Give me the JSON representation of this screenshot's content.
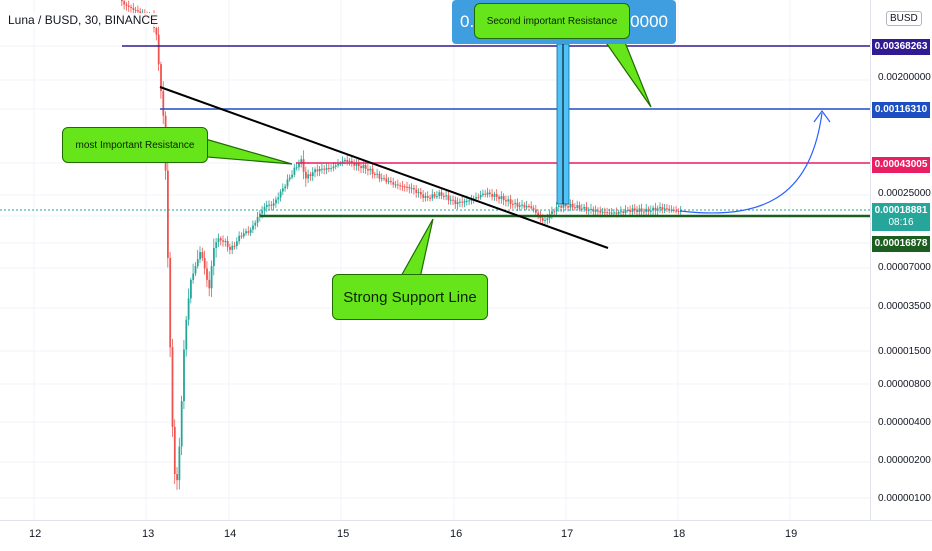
{
  "header": {
    "symbol": "Luna / BUSD, 30, BINANCE"
  },
  "top_box": {
    "left_text": "0.",
    "right_text": "30000"
  },
  "callouts": {
    "resistance_1": "most Important Resistance",
    "resistance_2": "Second important Resistance",
    "support": "Strong Support Line"
  },
  "price_axis": {
    "currency": "BUSD",
    "ticks": [
      "0.00200000",
      "0.00025000",
      "0.00007000",
      "0.00003500",
      "0.00001500",
      "0.00000800",
      "0.00000400",
      "0.00000200",
      "0.00000100"
    ],
    "tags": [
      {
        "label": "0.00368263",
        "color": "#311b92"
      },
      {
        "label": "0.00116310",
        "color": "#1e4fc2"
      },
      {
        "label": "0.00043005",
        "color": "#e91e63"
      },
      {
        "label": "0.00018881",
        "sub": "08:16",
        "color": "#26a69a"
      },
      {
        "label": "0.00016878",
        "color": "#1b5e20"
      }
    ]
  },
  "time_axis": {
    "labels": [
      "12",
      "13",
      "14",
      "15",
      "16",
      "17",
      "18",
      "19"
    ]
  },
  "chart_data": {
    "type": "candlestick",
    "title": "Luna / BUSD, 30, BINANCE",
    "y_scale": "log",
    "x_labels": [
      "12",
      "13",
      "14",
      "15",
      "16",
      "17",
      "18",
      "19"
    ],
    "horizontal_levels": [
      {
        "value": 0.00368263,
        "color": "#311b92"
      },
      {
        "value": 0.0011631,
        "color": "#1e4fc2"
      },
      {
        "value": 0.00043005,
        "color": "#e91e63"
      },
      {
        "value": 0.00016878,
        "color": "#1b5e20"
      }
    ],
    "last_price": 0.00018881,
    "up_color": "#26a69a",
    "down_color": "#ef5350",
    "grid": true
  }
}
